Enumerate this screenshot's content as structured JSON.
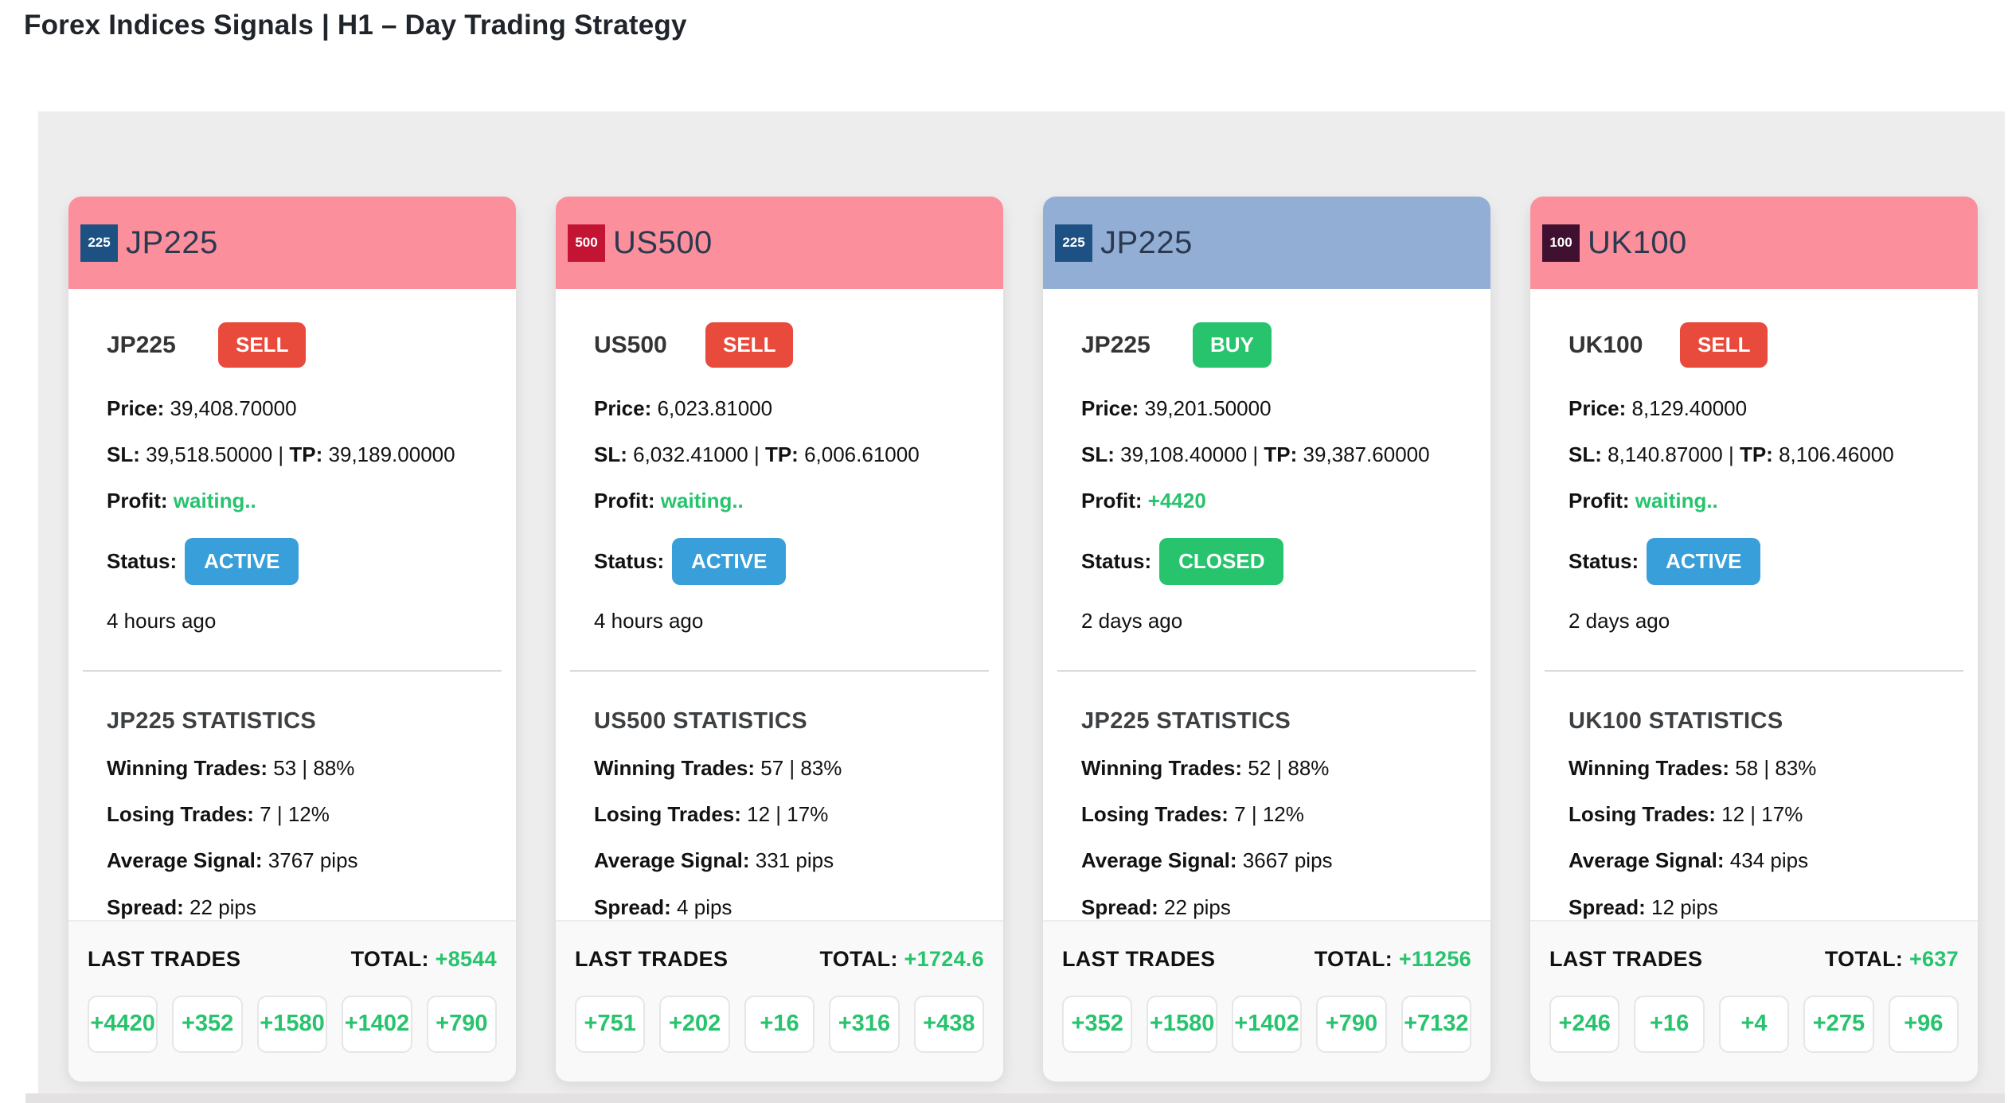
{
  "page_title": "Forex Indices Signals | H1 – Day Trading Strategy",
  "colors": {
    "panel_background": "#eeedee",
    "green_accent": "#27c36d",
    "sell_red": "#e84a3c",
    "buy_green": "#27c46d",
    "active_blue": "#389fda",
    "closed_green": "#27c46d",
    "pink_header": "#fb8f9b",
    "blue_header": "#93aed5"
  },
  "cards": [
    {
      "symbol": "JP225",
      "badge_text": "225",
      "badge_color": "#1d5184",
      "header_color": "#fb8f9b",
      "signal": "SELL",
      "signal_color": "#e84a3c",
      "price_label": "Price:",
      "price": "39,408.70000",
      "sl_label": "SL:",
      "sl": "39,518.50000",
      "sep": "|",
      "tp_label": "TP:",
      "tp": "39,189.00000",
      "profit_label": "Profit:",
      "profit": "waiting..",
      "status_label": "Status:",
      "status": "ACTIVE",
      "status_color": "#389fda",
      "time_ago": "4 hours ago",
      "stats": {
        "title": "JP225 STATISTICS",
        "winning_label": "Winning Trades:",
        "winning": "53 | 88%",
        "losing_label": "Losing Trades:",
        "losing": "7 | 12%",
        "avg_label": "Average Signal:",
        "avg": "3767 pips",
        "spread_label": "Spread:",
        "spread": "22 pips"
      },
      "last_trades_label": "LAST TRADES",
      "total_label": "TOTAL:",
      "total": "+8544",
      "trades": [
        "+4420",
        "+352",
        "+1580",
        "+1402",
        "+790"
      ]
    },
    {
      "symbol": "US500",
      "badge_text": "500",
      "badge_color": "#c41434",
      "header_color": "#fb8f9b",
      "signal": "SELL",
      "signal_color": "#e84a3c",
      "price_label": "Price:",
      "price": "6,023.81000",
      "sl_label": "SL:",
      "sl": "6,032.41000",
      "sep": "|",
      "tp_label": "TP:",
      "tp": "6,006.61000",
      "profit_label": "Profit:",
      "profit": "waiting..",
      "status_label": "Status:",
      "status": "ACTIVE",
      "status_color": "#389fda",
      "time_ago": "4 hours ago",
      "stats": {
        "title": "US500 STATISTICS",
        "winning_label": "Winning Trades:",
        "winning": "57 | 83%",
        "losing_label": "Losing Trades:",
        "losing": "12 | 17%",
        "avg_label": "Average Signal:",
        "avg": "331 pips",
        "spread_label": "Spread:",
        "spread": "4 pips"
      },
      "last_trades_label": "LAST TRADES",
      "total_label": "TOTAL:",
      "total": "+1724.6",
      "trades": [
        "+751",
        "+202",
        "+16",
        "+316",
        "+438"
      ]
    },
    {
      "symbol": "JP225",
      "badge_text": "225",
      "badge_color": "#1d5184",
      "header_color": "#93aed5",
      "signal": "BUY",
      "signal_color": "#27c46d",
      "price_label": "Price:",
      "price": "39,201.50000",
      "sl_label": "SL:",
      "sl": "39,108.40000",
      "sep": "|",
      "tp_label": "TP:",
      "tp": "39,387.60000",
      "profit_label": "Profit:",
      "profit": "+4420",
      "status_label": "Status:",
      "status": "CLOSED",
      "status_color": "#27c46d",
      "time_ago": "2 days ago",
      "stats": {
        "title": "JP225 STATISTICS",
        "winning_label": "Winning Trades:",
        "winning": "52 | 88%",
        "losing_label": "Losing Trades:",
        "losing": "7 | 12%",
        "avg_label": "Average Signal:",
        "avg": "3667 pips",
        "spread_label": "Spread:",
        "spread": "22 pips"
      },
      "last_trades_label": "LAST TRADES",
      "total_label": "TOTAL:",
      "total": "+11256",
      "trades": [
        "+352",
        "+1580",
        "+1402",
        "+790",
        "+7132"
      ]
    },
    {
      "symbol": "UK100",
      "badge_text": "100",
      "badge_color": "#3f1030",
      "header_color": "#fb8f9b",
      "signal": "SELL",
      "signal_color": "#e84a3c",
      "price_label": "Price:",
      "price": "8,129.40000",
      "sl_label": "SL:",
      "sl": "8,140.87000",
      "sep": "|",
      "tp_label": "TP:",
      "tp": "8,106.46000",
      "profit_label": "Profit:",
      "profit": "waiting..",
      "status_label": "Status:",
      "status": "ACTIVE",
      "status_color": "#389fda",
      "time_ago": "2 days ago",
      "stats": {
        "title": "UK100 STATISTICS",
        "winning_label": "Winning Trades:",
        "winning": "58 | 83%",
        "losing_label": "Losing Trades:",
        "losing": "12 | 17%",
        "avg_label": "Average Signal:",
        "avg": "434 pips",
        "spread_label": "Spread:",
        "spread": "12 pips"
      },
      "last_trades_label": "LAST TRADES",
      "total_label": "TOTAL:",
      "total": "+637",
      "trades": [
        "+246",
        "+16",
        "+4",
        "+275",
        "+96"
      ]
    }
  ]
}
